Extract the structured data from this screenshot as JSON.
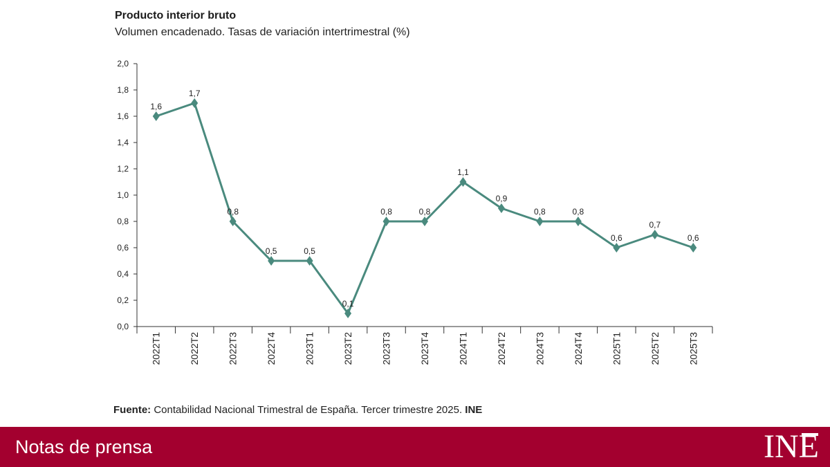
{
  "chart_data": {
    "type": "line",
    "title": "Producto interior bruto",
    "subtitle": "Volumen encadenado. Tasas de variación intertrimestral (%)",
    "xlabel": "",
    "ylabel": "",
    "ylim": [
      0,
      2.0
    ],
    "yticks": [
      "0,0",
      "0,2",
      "0,4",
      "0,6",
      "0,8",
      "1,0",
      "1,2",
      "1,4",
      "1,6",
      "1,8",
      "2,0"
    ],
    "grid": false,
    "categories": [
      "2022T1",
      "2022T2",
      "2022T3",
      "2022T4",
      "2023T1",
      "2023T2",
      "2023T3",
      "2023T4",
      "2024T1",
      "2024T2",
      "2024T3",
      "2024T4",
      "2025T1",
      "2025T2",
      "2025T3"
    ],
    "series": [
      {
        "name": "PIB",
        "values": [
          1.6,
          1.7,
          0.8,
          0.5,
          0.5,
          0.1,
          0.8,
          0.8,
          1.1,
          0.9,
          0.8,
          0.8,
          0.6,
          0.7,
          0.6
        ],
        "labels": [
          "1,6",
          "1,7",
          "0,8",
          "0,5",
          "0,5",
          "0,1",
          "0,8",
          "0,8",
          "1,1",
          "0,9",
          "0,8",
          "0,8",
          "0,6",
          "0,7",
          "0,6"
        ],
        "color": "#4a8a7e"
      }
    ]
  },
  "source": {
    "prefix": "Fuente:",
    "text": " Contabilidad Nacional Trimestral de España. Tercer trimestre 2025. ",
    "suffix": "INE"
  },
  "footer": {
    "label": "Notas de prensa",
    "logo_text": "INE",
    "bar_color": "#a3002f"
  }
}
